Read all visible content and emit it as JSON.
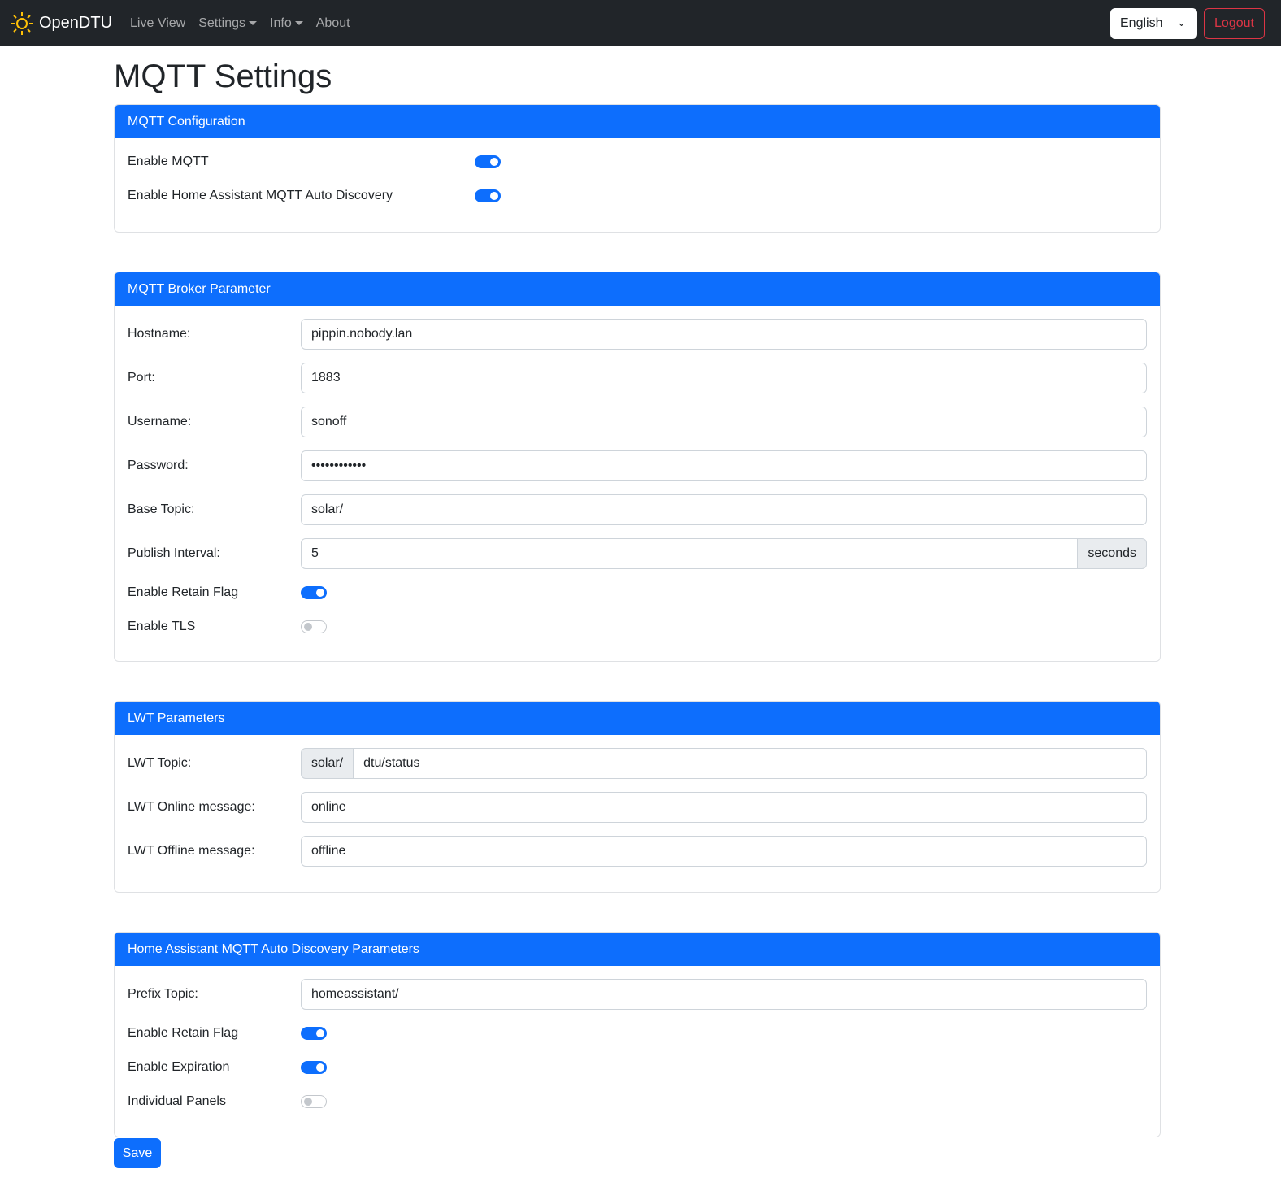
{
  "nav": {
    "brand": "OpenDTU",
    "items": [
      "Live View",
      "Settings",
      "Info",
      "About"
    ],
    "language": "English",
    "logout": "Logout"
  },
  "title": "MQTT Settings",
  "config": {
    "header": "MQTT Configuration",
    "enable_mqtt": {
      "label": "Enable MQTT",
      "on": true
    },
    "enable_hass": {
      "label": "Enable Home Assistant MQTT Auto Discovery",
      "on": true
    }
  },
  "broker": {
    "header": "MQTT Broker Parameter",
    "hostname": {
      "label": "Hostname:",
      "value": "pippin.nobody.lan"
    },
    "port": {
      "label": "Port:",
      "value": "1883"
    },
    "username": {
      "label": "Username:",
      "value": "sonoff"
    },
    "password": {
      "label": "Password:",
      "value": "••••••••••••"
    },
    "base_topic": {
      "label": "Base Topic:",
      "value": "solar/"
    },
    "publish_interval": {
      "label": "Publish Interval:",
      "value": "5",
      "unit": "seconds"
    },
    "retain": {
      "label": "Enable Retain Flag",
      "on": true
    },
    "tls": {
      "label": "Enable TLS",
      "on": false
    }
  },
  "lwt": {
    "header": "LWT Parameters",
    "topic": {
      "label": "LWT Topic:",
      "prefix": "solar/",
      "value": "dtu/status"
    },
    "online": {
      "label": "LWT Online message:",
      "value": "online"
    },
    "offline": {
      "label": "LWT Offline message:",
      "value": "offline"
    }
  },
  "hass": {
    "header": "Home Assistant MQTT Auto Discovery Parameters",
    "prefix": {
      "label": "Prefix Topic:",
      "value": "homeassistant/"
    },
    "retain": {
      "label": "Enable Retain Flag",
      "on": true
    },
    "expiration": {
      "label": "Enable Expiration",
      "on": true
    },
    "individual": {
      "label": "Individual Panels",
      "on": false
    }
  },
  "save": "Save",
  "colors": {
    "primary": "#0d6efd",
    "navbar": "#212529",
    "danger": "#dc3545",
    "sun": "#ffc107"
  }
}
